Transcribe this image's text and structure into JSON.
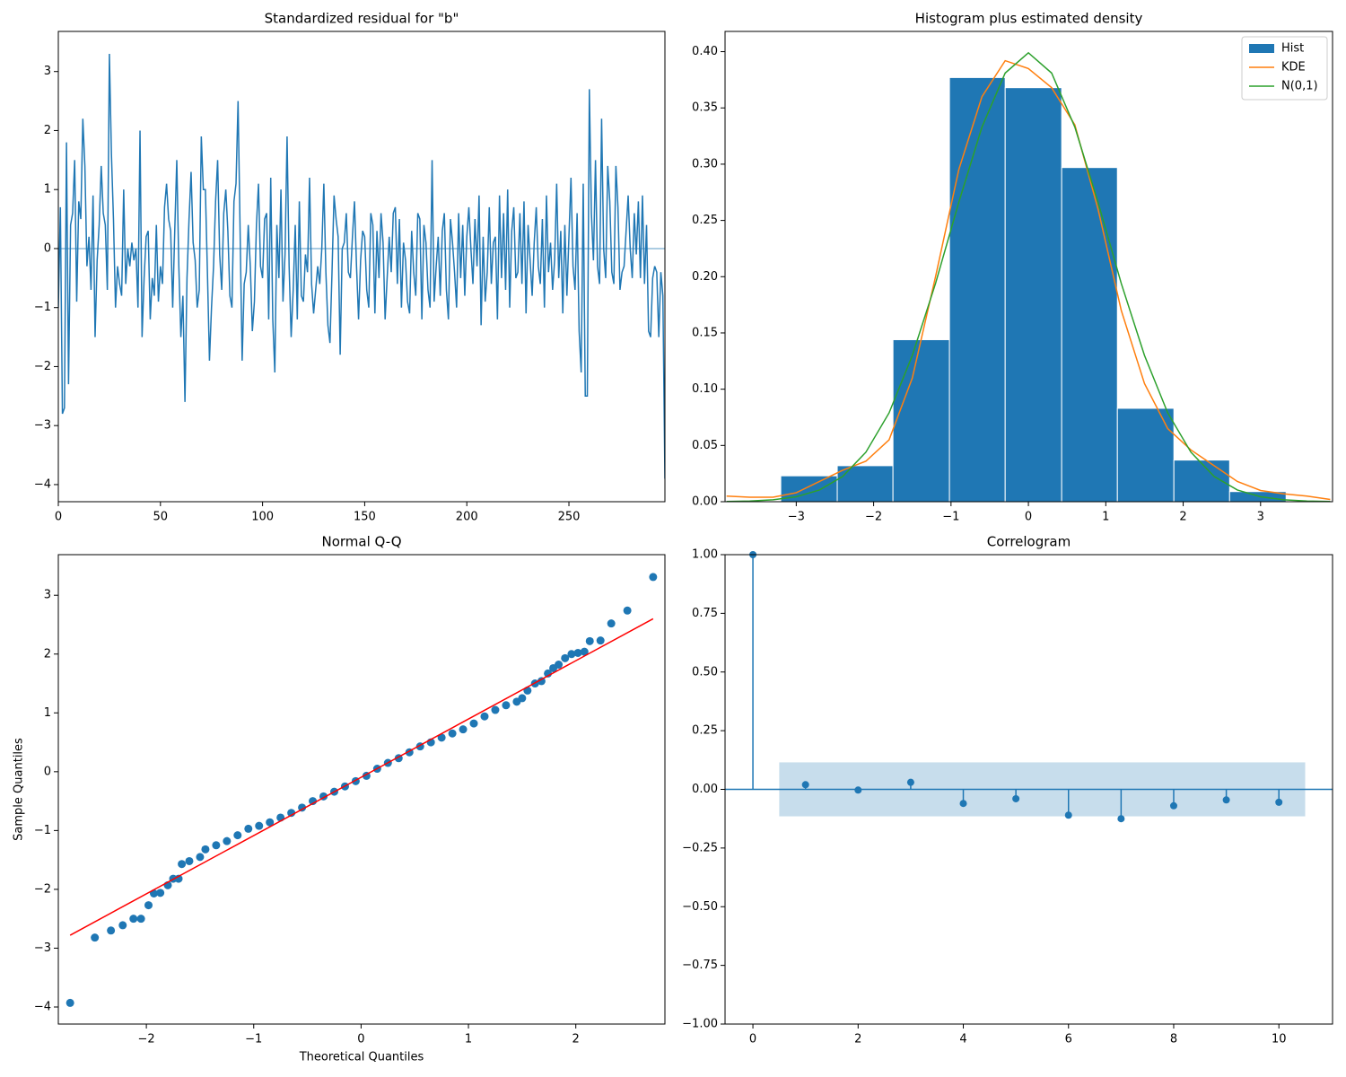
{
  "chart_data": [
    {
      "type": "line",
      "title": "Standardized residual for \"b\"",
      "color": "#1f77b4",
      "xlim": [
        0,
        297
      ],
      "xticks": [
        0,
        50,
        100,
        150,
        200,
        250
      ],
      "ylim": [
        -4.29,
        3.68
      ],
      "yticks": [
        {
          "value": -4,
          "label": "−4"
        },
        {
          "value": -3,
          "label": "−3"
        },
        {
          "value": -2,
          "label": "−2"
        },
        {
          "value": -1,
          "label": "−1"
        },
        0,
        1,
        2,
        3
      ],
      "hline": 0,
      "values": [
        -1.0,
        0.7,
        -2.8,
        -2.7,
        1.8,
        -2.3,
        0.4,
        0.6,
        1.5,
        -0.9,
        0.8,
        0.5,
        2.2,
        1.4,
        -0.3,
        0.2,
        -0.7,
        0.9,
        -1.5,
        -0.2,
        0.4,
        1.4,
        0.6,
        0.4,
        -0.7,
        3.3,
        1.6,
        0.5,
        -1.0,
        -0.3,
        -0.6,
        -0.8,
        1.0,
        -0.6,
        0.0,
        -0.3,
        0.1,
        -0.2,
        0.0,
        -1.0,
        2.0,
        -1.5,
        -0.5,
        0.2,
        0.3,
        -1.2,
        -0.5,
        -0.8,
        0.4,
        -0.9,
        -0.3,
        -0.6,
        0.7,
        1.1,
        0.5,
        0.3,
        -1.0,
        0.3,
        1.5,
        -0.3,
        -1.5,
        -0.8,
        -2.6,
        -0.5,
        0.5,
        1.3,
        0.1,
        -0.2,
        -1.0,
        -0.7,
        1.9,
        1.0,
        1.0,
        -0.4,
        -1.9,
        -1.0,
        -0.3,
        0.8,
        1.5,
        -0.1,
        -0.7,
        0.6,
        1.0,
        0.3,
        -0.8,
        -1.0,
        0.8,
        1.1,
        2.5,
        0.3,
        -1.9,
        -0.6,
        -0.4,
        0.4,
        -0.3,
        -1.4,
        -0.9,
        0.4,
        1.1,
        -0.3,
        -0.5,
        0.5,
        0.6,
        -1.2,
        1.2,
        -1.2,
        -2.1,
        0.4,
        -0.5,
        1.0,
        -0.9,
        -0.1,
        1.9,
        -0.3,
        -1.5,
        -0.7,
        0.4,
        -1.2,
        0.8,
        -0.8,
        -0.9,
        -0.1,
        -0.4,
        1.2,
        -0.6,
        -1.1,
        -0.7,
        -0.3,
        -0.6,
        0.0,
        1.1,
        -0.4,
        -1.3,
        -1.6,
        -0.4,
        0.9,
        0.5,
        0.2,
        -1.8,
        0.0,
        0.1,
        0.6,
        -0.4,
        -0.5,
        0.2,
        0.8,
        -0.3,
        -1.2,
        -0.2,
        0.3,
        0.2,
        -0.7,
        -1.0,
        0.6,
        0.4,
        -1.1,
        0.3,
        -0.5,
        0.6,
        0.1,
        -1.2,
        -0.5,
        0.2,
        -0.4,
        0.6,
        0.7,
        -0.6,
        0.5,
        -1.0,
        0.1,
        -0.2,
        -0.9,
        -1.1,
        0.3,
        -0.4,
        -0.8,
        0.6,
        0.5,
        -1.2,
        0.4,
        0.1,
        -0.7,
        -1.0,
        1.5,
        -0.9,
        -0.3,
        0.2,
        -0.8,
        0.3,
        0.6,
        -0.7,
        -1.2,
        0.5,
        0.1,
        -0.4,
        -1.0,
        0.6,
        -0.5,
        0.4,
        -0.8,
        0.2,
        0.7,
        0.0,
        -0.6,
        0.5,
        -0.3,
        0.9,
        -1.3,
        0.2,
        -0.9,
        -0.4,
        0.7,
        -0.6,
        0.1,
        0.2,
        -1.2,
        0.9,
        -0.5,
        0.6,
        -0.7,
        1.0,
        -1.0,
        0.3,
        0.7,
        -0.5,
        -0.4,
        0.6,
        -0.6,
        0.8,
        -1.1,
        0.4,
        -0.2,
        -0.8,
        0.1,
        0.7,
        -0.3,
        -0.6,
        0.5,
        -1.0,
        0.9,
        -0.4,
        0.1,
        -0.7,
        -0.2,
        1.1,
        -0.5,
        0.3,
        -1.1,
        0.4,
        -0.8,
        0.2,
        1.2,
        -0.3,
        -0.7,
        0.6,
        -1.4,
        -2.1,
        1.1,
        -2.5,
        -2.5,
        2.7,
        0.6,
        -0.2,
        1.5,
        -0.3,
        -0.6,
        2.2,
        0.0,
        -0.5,
        1.4,
        0.8,
        -0.4,
        -0.6,
        1.4,
        0.7,
        -0.7,
        -0.4,
        -0.3,
        0.3,
        0.9,
        0.0,
        -0.5,
        0.6,
        -0.1,
        0.8,
        -0.5,
        0.9,
        -0.6,
        0.4,
        -1.4,
        -1.5,
        -0.5,
        -0.3,
        -0.4,
        -1.5,
        -0.4,
        -0.8,
        -3.9
      ]
    },
    {
      "type": "histogram",
      "title": "Histogram plus estimated density",
      "xlim": [
        -3.92,
        3.93
      ],
      "xticks": [
        {
          "value": -3,
          "label": "−3"
        },
        {
          "value": -2,
          "label": "−2"
        },
        {
          "value": -1,
          "label": "−1"
        },
        0,
        1,
        2,
        3
      ],
      "ylim": [
        0,
        0.418
      ],
      "yticks": [
        {
          "value": 0,
          "label": "0.00"
        },
        {
          "value": 0.05,
          "label": "0.05"
        },
        {
          "value": 0.1,
          "label": "0.10"
        },
        {
          "value": 0.15,
          "label": "0.15"
        },
        {
          "value": 0.2,
          "label": "0.20"
        },
        {
          "value": 0.25,
          "label": "0.25"
        },
        {
          "value": 0.3,
          "label": "0.30"
        },
        {
          "value": 0.35,
          "label": "0.35"
        },
        {
          "value": 0.4,
          "label": "0.40"
        }
      ],
      "legend": "upper right",
      "hist": {
        "name": "Hist",
        "color": "#1f77b4",
        "bins": [
          -3.2,
          -2.47,
          -1.75,
          -1.02,
          -0.3,
          0.43,
          1.15,
          1.88,
          2.6,
          3.33
        ],
        "values": [
          0.023,
          0.032,
          0.144,
          0.377,
          0.368,
          0.297,
          0.083,
          0.037,
          0.009
        ]
      },
      "series": [
        {
          "name": "KDE",
          "color": "#ff7f0e",
          "x": [
            -3.9,
            -3.6,
            -3.3,
            -3.0,
            -2.7,
            -2.4,
            -2.1,
            -1.8,
            -1.5,
            -1.2,
            -0.9,
            -0.6,
            -0.3,
            0,
            0.3,
            0.6,
            0.9,
            1.2,
            1.5,
            1.8,
            2.1,
            2.4,
            2.7,
            3.0,
            3.3,
            3.6,
            3.9
          ],
          "values": [
            0.005,
            0.004,
            0.004,
            0.008,
            0.018,
            0.028,
            0.036,
            0.055,
            0.11,
            0.2,
            0.295,
            0.36,
            0.392,
            0.385,
            0.368,
            0.335,
            0.26,
            0.17,
            0.105,
            0.065,
            0.046,
            0.032,
            0.018,
            0.01,
            0.007,
            0.005,
            0.002
          ]
        },
        {
          "name": "N(0,1)",
          "color": "#2ca02c",
          "x": [
            -3.9,
            -3.6,
            -3.3,
            -3.0,
            -2.7,
            -2.4,
            -2.1,
            -1.8,
            -1.5,
            -1.2,
            -0.9,
            -0.6,
            -0.3,
            0,
            0.3,
            0.6,
            0.9,
            1.2,
            1.5,
            1.8,
            2.1,
            2.4,
            2.7,
            3.0,
            3.3,
            3.6,
            3.9
          ],
          "values": [
            0.0002,
            0.0006,
            0.0017,
            0.0044,
            0.0104,
            0.0224,
            0.044,
            0.079,
            0.13,
            0.194,
            0.266,
            0.333,
            0.381,
            0.399,
            0.381,
            0.333,
            0.266,
            0.194,
            0.13,
            0.079,
            0.044,
            0.0224,
            0.0104,
            0.0044,
            0.0017,
            0.0006,
            0.0002
          ]
        }
      ]
    },
    {
      "type": "scatter",
      "title": "Normal Q-Q",
      "x_label": "Theoretical Quantiles",
      "y_label": "Sample Quantiles",
      "color": "#1f77b4",
      "xlim": [
        -2.82,
        2.83
      ],
      "xticks": [
        {
          "value": -2,
          "label": "−2"
        },
        {
          "value": -1,
          "label": "−1"
        },
        0,
        1,
        2
      ],
      "ylim": [
        -4.29,
        3.69
      ],
      "yticks": [
        {
          "value": -4,
          "label": "−4"
        },
        {
          "value": -3,
          "label": "−3"
        },
        {
          "value": -2,
          "label": "−2"
        },
        {
          "value": -1,
          "label": "−1"
        },
        0,
        1,
        2,
        3
      ],
      "x": [
        -2.71,
        -2.48,
        -2.33,
        -2.22,
        -2.12,
        -2.05,
        -1.98,
        -1.93,
        -1.87,
        -1.8,
        -1.75,
        -1.7,
        -1.67,
        -1.6,
        -1.5,
        -1.45,
        -1.35,
        -1.25,
        -1.15,
        -1.05,
        -0.95,
        -0.85,
        -0.75,
        -0.65,
        -0.55,
        -0.45,
        -0.35,
        -0.25,
        -0.15,
        -0.05,
        0.05,
        0.15,
        0.25,
        0.35,
        0.45,
        0.55,
        0.65,
        0.75,
        0.85,
        0.95,
        1.05,
        1.15,
        1.25,
        1.35,
        1.45,
        1.5,
        1.55,
        1.62,
        1.68,
        1.74,
        1.79,
        1.84,
        1.9,
        1.96,
        2.02,
        2.08,
        2.13,
        2.23,
        2.33,
        2.48,
        2.72
      ],
      "values": [
        -3.93,
        -2.82,
        -2.7,
        -2.61,
        -2.5,
        -2.5,
        -2.27,
        -2.07,
        -2.06,
        -1.93,
        -1.82,
        -1.82,
        -1.57,
        -1.52,
        -1.45,
        -1.32,
        -1.25,
        -1.18,
        -1.08,
        -0.97,
        -0.92,
        -0.86,
        -0.78,
        -0.7,
        -0.61,
        -0.5,
        -0.42,
        -0.34,
        -0.25,
        -0.16,
        -0.07,
        0.05,
        0.15,
        0.23,
        0.33,
        0.43,
        0.5,
        0.58,
        0.65,
        0.72,
        0.82,
        0.94,
        1.05,
        1.13,
        1.19,
        1.25,
        1.38,
        1.5,
        1.54,
        1.67,
        1.76,
        1.82,
        1.93,
        2.0,
        2.02,
        2.04,
        2.22,
        2.23,
        2.52,
        2.74,
        3.31
      ],
      "line": {
        "color": "red",
        "x": [
          -2.71,
          2.72
        ],
        "values": [
          -2.78,
          2.6
        ]
      }
    },
    {
      "type": "stem",
      "title": "Correlogram",
      "color": "#1f77b4",
      "xlim": [
        -0.53,
        11.02
      ],
      "xticks": [
        0,
        2,
        4,
        6,
        8,
        10
      ],
      "ylim": [
        -1,
        1
      ],
      "yticks": [
        {
          "value": -1,
          "label": "−1.00"
        },
        {
          "value": -0.75,
          "label": "−0.75"
        },
        {
          "value": -0.5,
          "label": "−0.50"
        },
        {
          "value": -0.25,
          "label": "−0.25"
        },
        {
          "value": 0,
          "label": "0.00"
        },
        {
          "value": 0.25,
          "label": "0.25"
        },
        {
          "value": 0.5,
          "label": "0.50"
        },
        {
          "value": 0.75,
          "label": "0.75"
        },
        {
          "value": 1,
          "label": "1.00"
        }
      ],
      "hline": 0,
      "x": [
        0,
        1,
        2,
        3,
        4,
        5,
        6,
        7,
        8,
        9,
        10
      ],
      "values": [
        1.0,
        0.02,
        -0.003,
        0.03,
        -0.06,
        -0.04,
        -0.11,
        -0.125,
        -0.07,
        -0.045,
        -0.055
      ],
      "conf_band": {
        "x": [
          0.5,
          10.5
        ],
        "lower": -0.115,
        "upper": 0.115
      }
    }
  ]
}
